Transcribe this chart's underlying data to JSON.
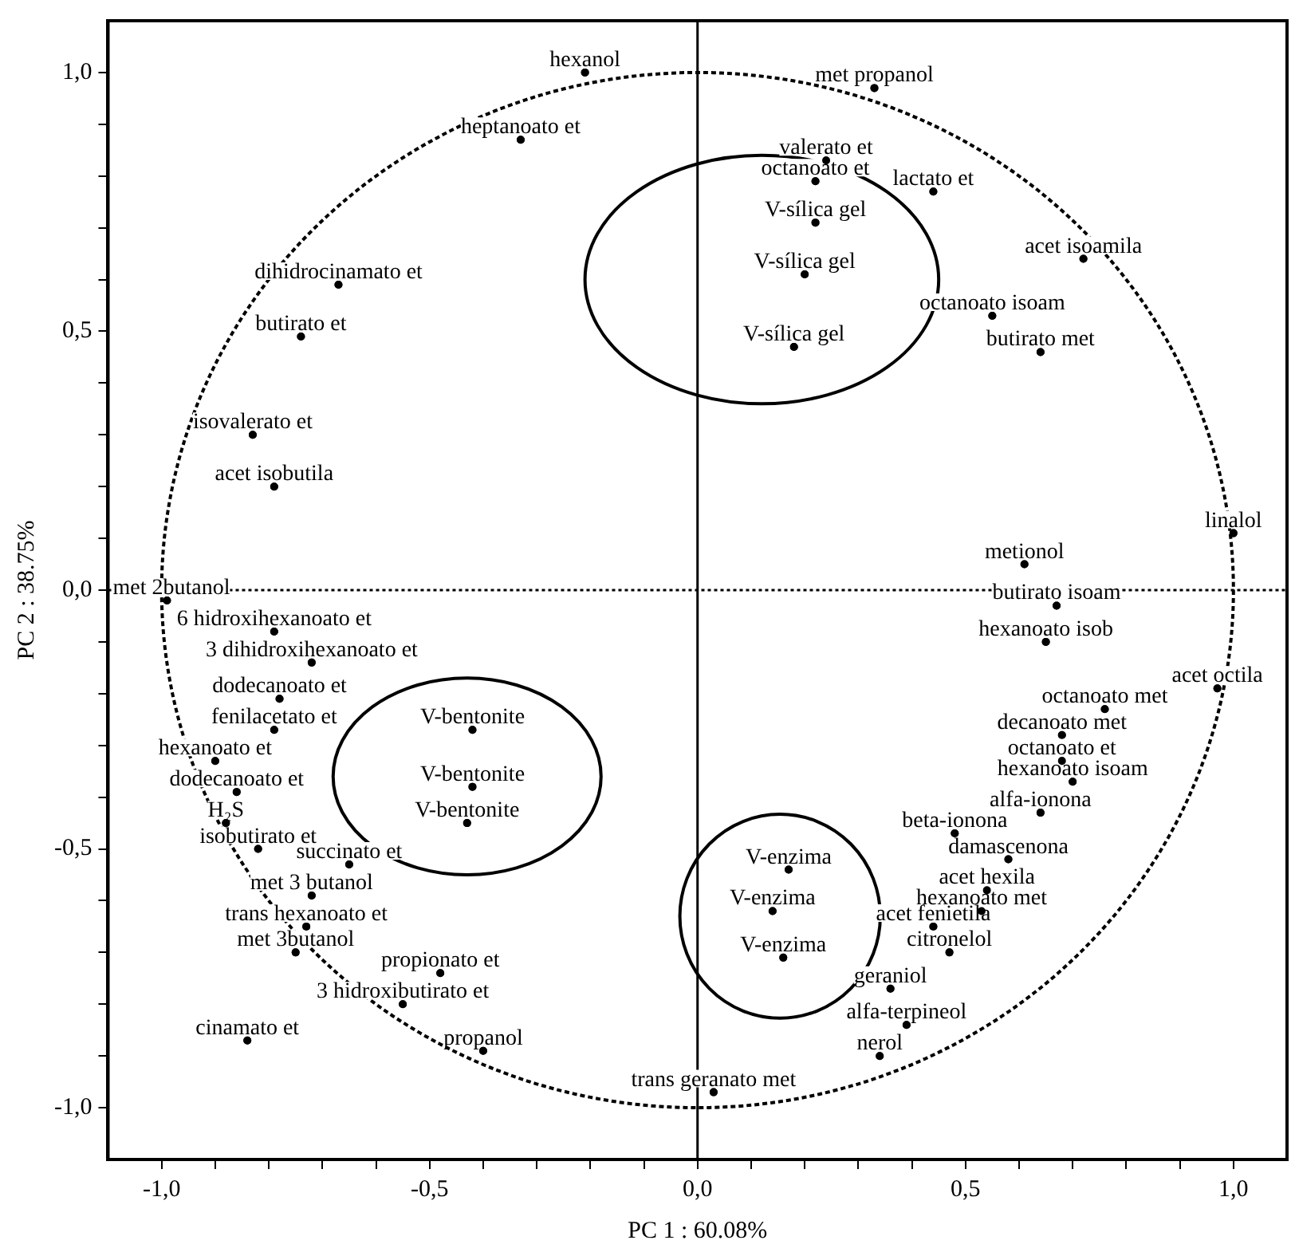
{
  "chart_data": {
    "type": "scatter",
    "xlabel": "PC 1 : 60.08%",
    "ylabel": "PC 2 : 38.75%",
    "marker": "circle",
    "annotations": [
      {
        "text": "hexanol",
        "x": -0.21,
        "y": 1.0
      },
      {
        "text": "met propanol",
        "x": 0.33,
        "y": 0.97
      },
      {
        "text": "heptanoato et",
        "x": -0.33,
        "y": 0.87
      },
      {
        "text": "valerato et",
        "x": 0.24,
        "y": 0.83
      },
      {
        "text": "octanoato et",
        "x": 0.22,
        "y": 0.79
      },
      {
        "text": "lactato et",
        "x": 0.44,
        "y": 0.77
      },
      {
        "text": "V-sílica gel",
        "x": 0.22,
        "y": 0.71
      },
      {
        "text": "V-sílica gel",
        "x": 0.2,
        "y": 0.61
      },
      {
        "text": "V-sílica gel",
        "x": 0.18,
        "y": 0.47
      },
      {
        "text": "acet isoamila",
        "x": 0.72,
        "y": 0.64
      },
      {
        "text": "dihidrocinamato et",
        "x": -0.67,
        "y": 0.59
      },
      {
        "text": "octanoato isoam",
        "x": 0.55,
        "y": 0.53
      },
      {
        "text": "butirato et",
        "x": -0.74,
        "y": 0.49
      },
      {
        "text": "butirato met",
        "x": 0.64,
        "y": 0.46
      },
      {
        "text": "isovalerato et",
        "x": -0.83,
        "y": 0.3
      },
      {
        "text": "acet isobutila",
        "x": -0.79,
        "y": 0.2
      },
      {
        "text": "linalol",
        "x": 1.0,
        "y": 0.11
      },
      {
        "text": "metionol",
        "x": 0.61,
        "y": 0.05
      },
      {
        "text": "met 2butanol",
        "x": -0.99,
        "y": -0.02
      },
      {
        "text": "butirato isoam",
        "x": 0.67,
        "y": -0.03
      },
      {
        "text": "6 hidroxihexanoato et",
        "x": -0.79,
        "y": -0.08
      },
      {
        "text": "hexanoato isob",
        "x": 0.65,
        "y": -0.1
      },
      {
        "text": "3 dihidroxihexanoato et",
        "x": -0.72,
        "y": -0.14
      },
      {
        "text": "acet octila",
        "x": 0.97,
        "y": -0.19
      },
      {
        "text": "dodecanoato et",
        "x": -0.78,
        "y": -0.21
      },
      {
        "text": "octanoato met",
        "x": 0.76,
        "y": -0.23
      },
      {
        "text": "fenilacetato et",
        "x": -0.79,
        "y": -0.27
      },
      {
        "text": "V-bentonite",
        "x": -0.42,
        "y": -0.27
      },
      {
        "text": "decanoato met",
        "x": 0.68,
        "y": -0.28
      },
      {
        "text": "hexanoato et",
        "x": -0.9,
        "y": -0.33
      },
      {
        "text": "octanoato et",
        "x": 0.68,
        "y": -0.33
      },
      {
        "text": "hexanoato isoam",
        "x": 0.7,
        "y": -0.37
      },
      {
        "text": "V-bentonite",
        "x": -0.42,
        "y": -0.38
      },
      {
        "text": "dodecanoato et",
        "x": -0.86,
        "y": -0.39
      },
      {
        "text": "alfa-ionona",
        "x": 0.64,
        "y": -0.43
      },
      {
        "text": "H₂S",
        "x": -0.88,
        "y": -0.45
      },
      {
        "text": "V-bentonite",
        "x": -0.43,
        "y": -0.45
      },
      {
        "text": "beta-ionona",
        "x": 0.48,
        "y": -0.47
      },
      {
        "text": "isobutirato et",
        "x": -0.82,
        "y": -0.5
      },
      {
        "text": "damascenona",
        "x": 0.58,
        "y": -0.52
      },
      {
        "text": "succinato et",
        "x": -0.65,
        "y": -0.53
      },
      {
        "text": "V-enzima",
        "x": 0.17,
        "y": -0.54
      },
      {
        "text": "acet hexila",
        "x": 0.54,
        "y": -0.58
      },
      {
        "text": "met 3 butanol",
        "x": -0.72,
        "y": -0.59
      },
      {
        "text": "V-enzima",
        "x": 0.14,
        "y": -0.62
      },
      {
        "text": "hexanoato met",
        "x": 0.53,
        "y": -0.62
      },
      {
        "text": "trans hexanoato et",
        "x": -0.73,
        "y": -0.65
      },
      {
        "text": "acet fenietila",
        "x": 0.44,
        "y": -0.65
      },
      {
        "text": "met 3butanol",
        "x": -0.75,
        "y": -0.7
      },
      {
        "text": "citronelol",
        "x": 0.47,
        "y": -0.7
      },
      {
        "text": "V-enzima",
        "x": 0.16,
        "y": -0.71
      },
      {
        "text": "propionato et",
        "x": -0.48,
        "y": -0.74
      },
      {
        "text": "geraniol",
        "x": 0.36,
        "y": -0.77
      },
      {
        "text": "3 hidroxibutirato et",
        "x": -0.55,
        "y": -0.8
      },
      {
        "text": "alfa-terpineol",
        "x": 0.39,
        "y": -0.84
      },
      {
        "text": "cinamato et",
        "x": -0.84,
        "y": -0.87
      },
      {
        "text": "propanol",
        "x": -0.4,
        "y": -0.89
      },
      {
        "text": "nerol",
        "x": 0.34,
        "y": -0.9
      },
      {
        "text": "trans geranato met",
        "x": 0.03,
        "y": -0.97
      }
    ],
    "xlim": [
      -1.1,
      1.1
    ],
    "ylim": [
      -1.1,
      1.1
    ],
    "xticks": [
      {
        "value": -1,
        "label": "-1,0"
      },
      {
        "value": -0.9,
        "label": null
      },
      {
        "value": -0.8,
        "label": null
      },
      {
        "value": -0.7,
        "label": null
      },
      {
        "value": -0.6,
        "label": null
      },
      {
        "value": -0.5,
        "label": "-0,5"
      },
      {
        "value": -0.4,
        "label": null
      },
      {
        "value": -0.3,
        "label": null
      },
      {
        "value": -0.2,
        "label": null
      },
      {
        "value": -0.1,
        "label": null
      },
      {
        "value": 0,
        "label": "0,0"
      },
      {
        "value": 0.1,
        "label": null
      },
      {
        "value": 0.2,
        "label": null
      },
      {
        "value": 0.3,
        "label": null
      },
      {
        "value": 0.4,
        "label": null
      },
      {
        "value": 0.5,
        "label": "0,5"
      },
      {
        "value": 0.6,
        "label": null
      },
      {
        "value": 0.7,
        "label": null
      },
      {
        "value": 0.8,
        "label": null
      },
      {
        "value": 0.9,
        "label": null
      },
      {
        "value": 1,
        "label": "1,0"
      }
    ],
    "yticks": [
      {
        "value": -1,
        "label": "-1,0"
      },
      {
        "value": -0.9,
        "label": null
      },
      {
        "value": -0.8,
        "label": null
      },
      {
        "value": -0.7,
        "label": null
      },
      {
        "value": -0.6,
        "label": null
      },
      {
        "value": -0.5,
        "label": "-0,5"
      },
      {
        "value": -0.4,
        "label": null
      },
      {
        "value": -0.3,
        "label": null
      },
      {
        "value": -0.2,
        "label": null
      },
      {
        "value": -0.1,
        "label": null
      },
      {
        "value": 0,
        "label": "0,0"
      },
      {
        "value": 0.1,
        "label": null
      },
      {
        "value": 0.2,
        "label": null
      },
      {
        "value": 0.3,
        "label": null
      },
      {
        "value": 0.4,
        "label": null
      },
      {
        "value": 0.5,
        "label": "0,5"
      },
      {
        "value": 0.6,
        "label": null
      },
      {
        "value": 0.7,
        "label": null
      },
      {
        "value": 0.8,
        "label": null
      },
      {
        "value": 0.9,
        "label": null
      },
      {
        "value": 1,
        "label": "1,0"
      }
    ],
    "ref_lines": [
      {
        "axis": "x",
        "value": 0,
        "line_style": "solid"
      },
      {
        "axis": "y",
        "value": 0,
        "line_style": "dotted"
      }
    ],
    "series": [
      {
        "color": "#000000",
        "x": [
          -0.21,
          0.33,
          -0.33,
          0.24,
          0.22,
          0.44,
          0.22,
          0.2,
          0.18,
          0.72,
          -0.67,
          0.55,
          -0.74,
          0.64,
          -0.83,
          -0.79,
          1.0,
          0.61,
          -0.99,
          0.67,
          -0.79,
          0.65,
          -0.72,
          0.97,
          -0.78,
          0.76,
          -0.79,
          -0.42,
          0.68,
          -0.9,
          0.68,
          0.7,
          -0.42,
          -0.86,
          0.64,
          -0.88,
          -0.43,
          0.48,
          -0.82,
          0.58,
          -0.65,
          0.17,
          0.54,
          -0.72,
          0.14,
          0.53,
          -0.73,
          0.44,
          -0.75,
          0.47,
          0.16,
          -0.48,
          0.36,
          -0.55,
          0.39,
          -0.84,
          -0.4,
          0.34,
          0.03
        ],
        "values": [
          1.0,
          0.97,
          0.87,
          0.83,
          0.79,
          0.77,
          0.71,
          0.61,
          0.47,
          0.64,
          0.59,
          0.53,
          0.49,
          0.46,
          0.3,
          0.2,
          0.11,
          0.05,
          -0.02,
          -0.03,
          -0.08,
          -0.1,
          -0.14,
          -0.19,
          -0.21,
          -0.23,
          -0.27,
          -0.27,
          -0.28,
          -0.33,
          -0.33,
          -0.37,
          -0.38,
          -0.39,
          -0.43,
          -0.45,
          -0.45,
          -0.47,
          -0.5,
          -0.52,
          -0.53,
          -0.54,
          -0.58,
          -0.59,
          -0.62,
          -0.62,
          -0.65,
          -0.65,
          -0.7,
          -0.7,
          -0.71,
          -0.74,
          -0.77,
          -0.8,
          -0.84,
          -0.87,
          -0.89,
          -0.9,
          -0.97
        ],
        "name": null
      }
    ]
  }
}
